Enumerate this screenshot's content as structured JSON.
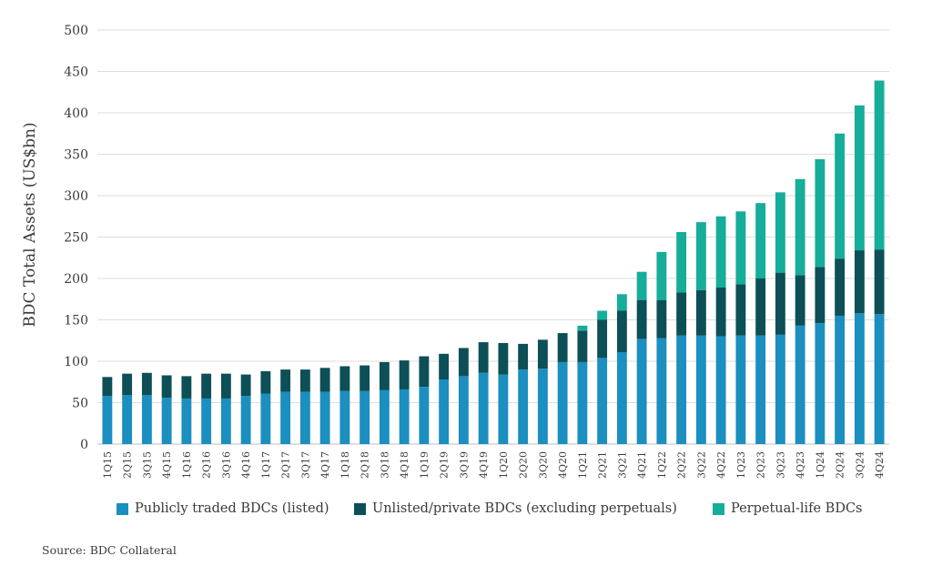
{
  "chart_data": {
    "type": "bar",
    "stacked": true,
    "ylabel": "BDC Total Assets (US$bn)",
    "ylim": [
      0,
      500
    ],
    "yticks": [
      0,
      50,
      100,
      150,
      200,
      250,
      300,
      350,
      400,
      450,
      500
    ],
    "grid": true,
    "legend_position": "bottom",
    "categories": [
      "1Q15",
      "2Q15",
      "3Q15",
      "4Q15",
      "1Q16",
      "2Q16",
      "3Q16",
      "4Q16",
      "1Q17",
      "2Q17",
      "3Q17",
      "4Q17",
      "1Q18",
      "2Q18",
      "3Q18",
      "4Q18",
      "1Q19",
      "2Q19",
      "3Q19",
      "4Q19",
      "1Q20",
      "2Q20",
      "3Q20",
      "4Q20",
      "1Q21",
      "2Q21",
      "3Q21",
      "4Q21",
      "1Q22",
      "2Q22",
      "3Q22",
      "4Q22",
      "1Q23",
      "2Q23",
      "3Q23",
      "4Q23",
      "1Q24",
      "2Q24",
      "3Q24",
      "4Q24"
    ],
    "series": [
      {
        "name": "Publicly traded BDCs (listed)",
        "color": "#1a8fc0",
        "values": [
          58,
          59,
          59,
          56,
          55,
          55,
          55,
          58,
          61,
          63,
          63,
          63,
          64,
          64,
          65,
          66,
          69,
          78,
          82,
          86,
          84,
          90,
          91,
          99,
          99,
          104,
          111,
          127,
          128,
          131,
          131,
          130,
          131,
          131,
          132,
          143,
          146,
          155,
          158,
          157
        ]
      },
      {
        "name": "Unlisted/private BDCs (excluding perpetuals)",
        "color": "#0c4f57",
        "values": [
          23,
          26,
          27,
          27,
          27,
          30,
          30,
          26,
          27,
          27,
          27,
          29,
          30,
          31,
          34,
          35,
          37,
          31,
          34,
          37,
          38,
          31,
          35,
          35,
          38,
          46,
          50,
          47,
          46,
          52,
          55,
          59,
          62,
          69,
          75,
          61,
          68,
          69,
          76,
          78
        ]
      },
      {
        "name": "Perpetual-life BDCs",
        "color": "#16ad9a",
        "values": [
          0,
          0,
          0,
          0,
          0,
          0,
          0,
          0,
          0,
          0,
          0,
          0,
          0,
          0,
          0,
          0,
          0,
          0,
          0,
          0,
          0,
          0,
          0,
          0,
          6,
          11,
          20,
          34,
          58,
          73,
          82,
          86,
          88,
          91,
          97,
          116,
          130,
          151,
          175,
          204
        ]
      }
    ],
    "source": "Source: BDC Collateral"
  }
}
